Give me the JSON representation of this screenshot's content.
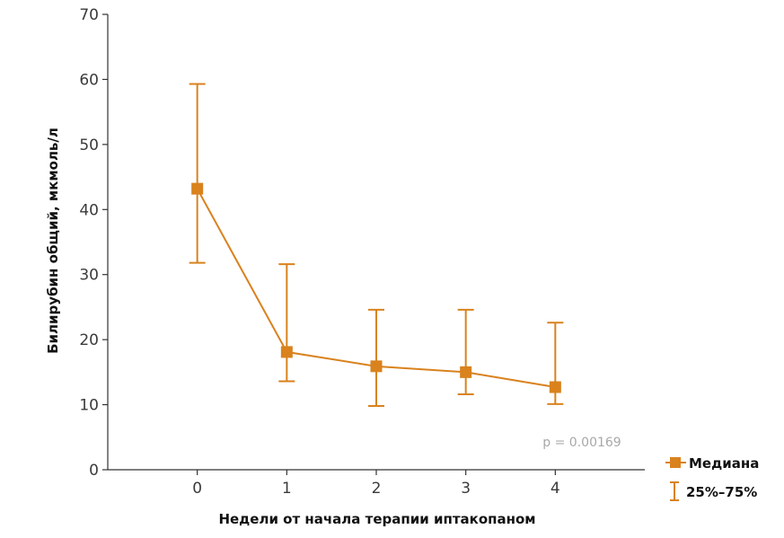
{
  "chart_data": {
    "type": "line",
    "title": "",
    "xlabel": "Недели от начала терапии иптакопаном",
    "ylabel": "Билирубин общий, мкмоль/л",
    "x": [
      0,
      1,
      2,
      3,
      4
    ],
    "x_tick_labels": [
      "0",
      "1",
      "2",
      "3",
      "4"
    ],
    "xlim": [
      -1,
      5
    ],
    "ylim": [
      0,
      70
    ],
    "y_ticks": [
      0,
      10,
      20,
      30,
      40,
      50,
      60,
      70
    ],
    "y_tick_labels": [
      "0",
      "10",
      "20",
      "30",
      "40",
      "50",
      "60",
      "70"
    ],
    "series": [
      {
        "name": "Медиана",
        "values": [
          43.2,
          18.1,
          15.9,
          15.0,
          12.7
        ],
        "q25": [
          31.8,
          13.6,
          9.8,
          11.6,
          10.1
        ],
        "q75": [
          59.3,
          31.6,
          24.6,
          24.6,
          22.6
        ]
      }
    ],
    "error_bar_label": "25%–75%",
    "annotation": "p = 0.00169",
    "grid": false,
    "legend_position": "bottom-right",
    "color": "#d9821e"
  }
}
